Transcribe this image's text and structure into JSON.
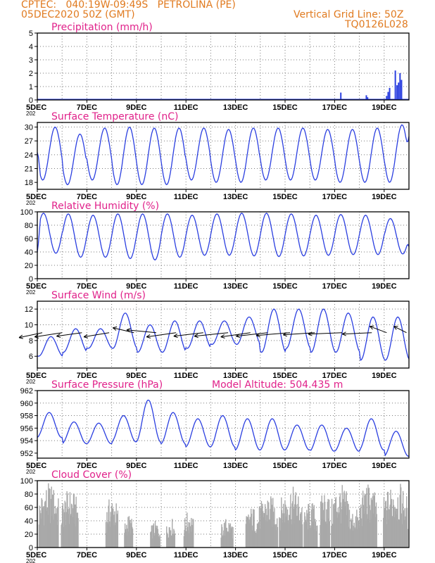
{
  "header": {
    "line1_left": "CPTEC:   040:19W-09:49S   PETROLINA (PE)",
    "line2_left": "05DEC2020 50Z (GMT)",
    "line1_right": "Vertical Grid Line: 50Z",
    "line2_right": "TQ0126L028"
  },
  "colors": {
    "header": "#e07a1f",
    "title": "#e0218a",
    "series": "#2b3fe0",
    "cloud": "#a9a9a9",
    "wind_arrow": "#000000",
    "grid": "#7a7a7a"
  },
  "x_axis": {
    "tick_labels": [
      "5DEC",
      "7DEC",
      "9DEC",
      "11DEC",
      "13DEC",
      "15DEC",
      "17DEC",
      "19DEC"
    ],
    "tick_days": [
      5,
      7,
      9,
      11,
      13,
      15,
      17,
      19
    ],
    "range_days": [
      5,
      20
    ],
    "subtext": "202"
  },
  "chart_data": [
    {
      "type": "bar",
      "title": "Precipitation (mm/h)",
      "ylim": [
        0,
        5
      ],
      "yticks": [
        "0",
        "1",
        "2",
        "3",
        "4",
        "5"
      ],
      "bars": [
        {
          "day": 17.25,
          "value": 0.55
        },
        {
          "day": 18.28,
          "value": 0.35
        },
        {
          "day": 18.33,
          "value": 0.2
        },
        {
          "day": 19.1,
          "value": 0.3
        },
        {
          "day": 19.16,
          "value": 0.6
        },
        {
          "day": 19.22,
          "value": 0.9
        },
        {
          "day": 19.45,
          "value": 2.2
        },
        {
          "day": 19.52,
          "value": 1.1
        },
        {
          "day": 19.58,
          "value": 1.3
        },
        {
          "day": 19.64,
          "value": 2.0
        },
        {
          "day": 19.7,
          "value": 1.5
        }
      ]
    },
    {
      "type": "line",
      "title": "Surface Temperature (nC)",
      "ylim": [
        16.5,
        31
      ],
      "yticks": [
        "18",
        "21",
        "24",
        "27",
        "30"
      ],
      "ytick_values": [
        18,
        21,
        24,
        27,
        30
      ],
      "daily_max": [
        30,
        28.5,
        29.8,
        30,
        29.8,
        29.8,
        29.8,
        29.5,
        29.8,
        29.8,
        29.8,
        29.5,
        29.5,
        29.8,
        30.5
      ],
      "daily_min": [
        18.5,
        17.5,
        18.5,
        17.5,
        17.5,
        17.5,
        18.5,
        18,
        18,
        18.5,
        18.5,
        18.5,
        18,
        18,
        18
      ],
      "start_value": 24.5,
      "end_value": 28
    },
    {
      "type": "line",
      "title": "Relative Humidity (%)",
      "ylim": [
        0,
        100
      ],
      "yticks": [
        "0",
        "20",
        "40",
        "60",
        "80",
        "100"
      ],
      "ytick_values": [
        0,
        20,
        40,
        60,
        80,
        100
      ],
      "daily_max": [
        98,
        97,
        95,
        97,
        97,
        97,
        95,
        97,
        98,
        98,
        97,
        95,
        96,
        95,
        90
      ],
      "daily_min": [
        38,
        32,
        32,
        30,
        28,
        32,
        35,
        35,
        34,
        33,
        34,
        35,
        36,
        36,
        37
      ],
      "start_value": 40,
      "end_value": 48
    },
    {
      "type": "line",
      "title": "Surface Wind (m/s)",
      "ylim": [
        4.5,
        13
      ],
      "yticks": [
        "6",
        "8",
        "10",
        "12"
      ],
      "ytick_values": [
        6,
        8,
        10,
        12
      ],
      "daily_max": [
        8.5,
        9.5,
        9.5,
        11.5,
        10,
        10.5,
        10.5,
        10.5,
        11,
        12,
        12,
        12,
        11.5,
        11,
        11
      ],
      "daily_min": [
        6,
        6.5,
        7,
        7,
        6.5,
        6.5,
        7,
        7.5,
        7.5,
        6.5,
        7,
        6.5,
        6.5,
        5.5,
        5.5
      ],
      "vectors": [
        {
          "day": 5.2,
          "dx": -0.55,
          "dy": 0.35
        },
        {
          "day": 6.0,
          "dx": -0.65,
          "dy": 0.3
        },
        {
          "day": 6.8,
          "dx": -0.6,
          "dy": 0.25
        },
        {
          "day": 7.9,
          "dx": -0.6,
          "dy": 0.3
        },
        {
          "day": 8.9,
          "dx": -0.5,
          "dy": -0.35
        },
        {
          "day": 9.8,
          "dx": -0.7,
          "dy": -0.2
        },
        {
          "day": 10.6,
          "dx": -0.7,
          "dy": 0.3
        },
        {
          "day": 11.7,
          "dx": -0.7,
          "dy": 0.25
        },
        {
          "day": 12.7,
          "dx": -0.8,
          "dy": 0.25
        },
        {
          "day": 13.6,
          "dx": -0.7,
          "dy": 0.3
        },
        {
          "day": 14.3,
          "dx": -0.75,
          "dy": 0.25
        },
        {
          "day": 15.2,
          "dx": -0.8,
          "dy": 0.2
        },
        {
          "day": 16.2,
          "dx": -0.75,
          "dy": 0.15
        },
        {
          "day": 17.3,
          "dx": -0.8,
          "dy": 0.1
        },
        {
          "day": 18.5,
          "dx": -0.7,
          "dy": 0.1
        },
        {
          "day": 19.1,
          "dx": -0.4,
          "dy": -0.45
        },
        {
          "day": 19.9,
          "dx": -0.3,
          "dy": -0.45
        }
      ]
    },
    {
      "type": "line",
      "title": "Surface Pressure (hPa)",
      "annotation": "Model Altitude: 504.435  m",
      "ylim": [
        951.2,
        962
      ],
      "yticks": [
        "952",
        "954",
        "956",
        "958",
        "960",
        "962"
      ],
      "ytick_values": [
        952,
        954,
        956,
        958,
        960,
        962
      ],
      "daily_max": [
        958.5,
        957,
        956.8,
        958,
        960.5,
        958.5,
        957.5,
        958,
        957.5,
        957.5,
        956.5,
        956.5,
        956,
        957.5,
        955.5
      ],
      "daily_min": [
        954.5,
        953.5,
        953.5,
        953.8,
        953.8,
        953.5,
        953,
        953,
        952.5,
        952.5,
        952.5,
        952.3,
        952.3,
        952.5,
        951.5
      ]
    },
    {
      "type": "bar",
      "title": "Cloud Cover (%)",
      "ylim": [
        0,
        100
      ],
      "yticks": [
        "0",
        "20",
        "40",
        "60",
        "80",
        "100"
      ],
      "ytick_values": [
        0,
        20,
        40,
        60,
        80,
        100
      ],
      "segments": [
        {
          "start": 5.05,
          "end": 5.85,
          "peak": 97
        },
        {
          "start": 5.95,
          "end": 6.65,
          "peak": 88
        },
        {
          "start": 7.75,
          "end": 8.25,
          "peak": 78
        },
        {
          "start": 8.5,
          "end": 8.85,
          "peak": 50
        },
        {
          "start": 9.55,
          "end": 9.95,
          "peak": 40
        },
        {
          "start": 10.2,
          "end": 10.55,
          "peak": 45
        },
        {
          "start": 10.9,
          "end": 11.3,
          "peak": 55
        },
        {
          "start": 12.4,
          "end": 12.9,
          "peak": 45
        },
        {
          "start": 13.4,
          "end": 13.9,
          "peak": 62
        },
        {
          "start": 13.9,
          "end": 14.7,
          "peak": 80
        },
        {
          "start": 14.75,
          "end": 15.7,
          "peak": 92
        },
        {
          "start": 15.75,
          "end": 16.3,
          "peak": 70
        },
        {
          "start": 16.4,
          "end": 16.8,
          "peak": 90
        },
        {
          "start": 16.85,
          "end": 17.6,
          "peak": 95
        },
        {
          "start": 17.6,
          "end": 18.0,
          "peak": 60
        },
        {
          "start": 18.0,
          "end": 18.7,
          "peak": 97
        },
        {
          "start": 18.95,
          "end": 19.95,
          "peak": 99
        }
      ]
    }
  ]
}
